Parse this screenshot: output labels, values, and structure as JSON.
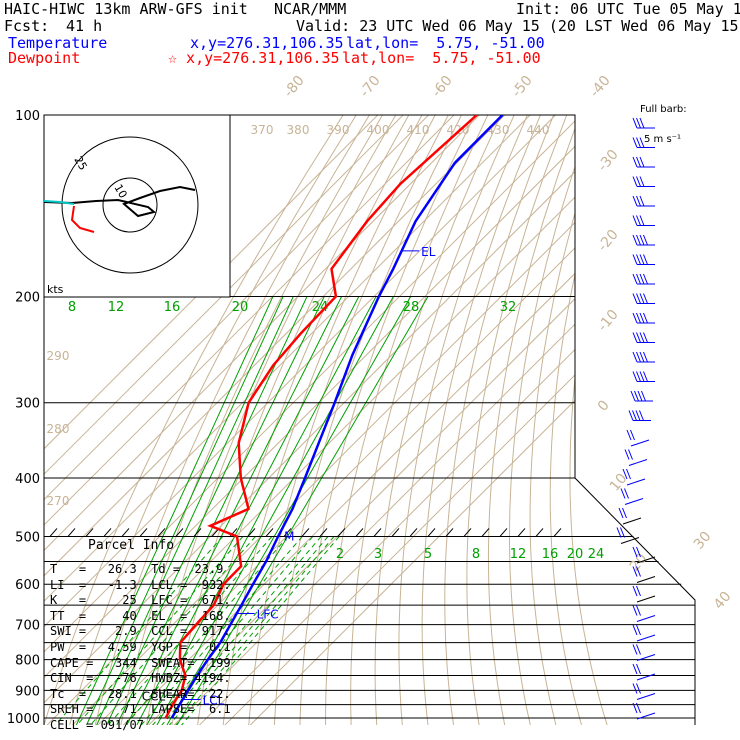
{
  "header": {
    "model": "HAIC-HIWC 13km ARW-GFS init",
    "org": "NCAR/MMM",
    "init": "Init: 06 UTC Tue 05 May 15",
    "fcst_label": "Fcst:",
    "fcst_value": "41 h",
    "valid": "Valid: 23 UTC Wed 06 May 15 (20 LST Wed 06 May 15)",
    "temp_label": "Temperature",
    "temp_xy": "x,y=276.31,106.35",
    "temp_latlon": "lat,lon=  5.75, -51.00",
    "dew_label": "Dewpoint",
    "dew_xy": "☆ x,y=276.31,106.35",
    "dew_latlon": "lat,lon=  5.75, -51.00",
    "full_barb": "Full barb:",
    "full_barb_units": "5 m s⁻¹"
  },
  "colors": {
    "temperature": "#ff0000",
    "dewpoint_note": "blue",
    "dewpoint": "#0000ff",
    "isotherm": "#c8b496",
    "mixing_ratio": "#00a000",
    "isobar": "#000000",
    "hodo_track": "#000000",
    "hodo_low": "#ff0000",
    "hodo_mid": "#00c8c8"
  },
  "chart_data": {
    "type": "skew-t",
    "pressure_levels": [
      100,
      200,
      300,
      400,
      500,
      600,
      700,
      800,
      900,
      1000
    ],
    "pressure_axis": "log",
    "temperature_profile": [
      {
        "p": 100,
        "t": -80.9
      },
      {
        "p": 120,
        "t": -80.8
      },
      {
        "p": 150,
        "t": -73.3
      },
      {
        "p": 180,
        "t": -63.3
      },
      {
        "p": 200,
        "t": -58.1
      },
      {
        "p": 250,
        "t": -45.5
      },
      {
        "p": 300,
        "t": -33.7
      },
      {
        "p": 350,
        "t": -24.1
      },
      {
        "p": 400,
        "t": -15.7
      },
      {
        "p": 450,
        "t": -8.5
      },
      {
        "p": 500,
        "t": -3.3
      },
      {
        "p": 550,
        "t": 1.8
      },
      {
        "p": 600,
        "t": 5.6
      },
      {
        "p": 650,
        "t": 9.3
      },
      {
        "p": 700,
        "t": 12.6
      },
      {
        "p": 750,
        "t": 15.7
      },
      {
        "p": 800,
        "t": 17.5
      },
      {
        "p": 850,
        "t": 19.6
      },
      {
        "p": 900,
        "t": 21.9
      },
      {
        "p": 950,
        "t": 24.1
      },
      {
        "p": 1000,
        "t": 26.3
      }
    ],
    "dewpoint_profile": [
      {
        "p": 100,
        "t": -91.0
      },
      {
        "p": 130,
        "t": -94.0
      },
      {
        "p": 150,
        "t": -92.4
      },
      {
        "p": 180,
        "t": -87.6
      },
      {
        "p": 200,
        "t": -75.0
      },
      {
        "p": 230,
        "t": -74.3
      },
      {
        "p": 260,
        "t": -72.6
      },
      {
        "p": 300,
        "t": -67.6
      },
      {
        "p": 350,
        "t": -55.6
      },
      {
        "p": 400,
        "t": -41.0
      },
      {
        "p": 450,
        "t": -25.8
      },
      {
        "p": 480,
        "t": -34.2
      },
      {
        "p": 500,
        "t": -19.5
      },
      {
        "p": 560,
        "t": -6.2
      },
      {
        "p": 600,
        "t": -6.0
      },
      {
        "p": 650,
        "t": -1.6
      },
      {
        "p": 700,
        "t": -0.9
      },
      {
        "p": 750,
        "t": 0.0
      },
      {
        "p": 800,
        "t": 6.5
      },
      {
        "p": 850,
        "t": 14.9
      },
      {
        "p": 900,
        "t": 19.4
      },
      {
        "p": 950,
        "t": 21.4
      },
      {
        "p": 1000,
        "t": 23.9
      }
    ],
    "isotherm_labels": [
      -80,
      -70,
      -60,
      -50,
      -40,
      -30,
      -20,
      -10,
      0,
      10,
      20,
      30,
      40
    ],
    "theta_labels_top": [
      370,
      380,
      390,
      400,
      410,
      420,
      430,
      440
    ],
    "theta_labels_left": [
      290,
      280,
      270
    ],
    "mixing_ratio_labels_upper": [
      8,
      12,
      16,
      20,
      24,
      28,
      32
    ],
    "mixing_ratio_labels_lower": [
      2,
      3,
      5,
      8,
      12,
      16,
      20,
      24
    ],
    "annotations": [
      {
        "label": "EL",
        "p": 168
      },
      {
        "label": "LFC",
        "p": 671
      },
      {
        "label": "CCL",
        "p": 917
      },
      {
        "label": "LCL",
        "p": 932
      },
      {
        "label": "M",
        "p": 500
      }
    ],
    "hodograph": {
      "units": "kts",
      "rings": [
        10,
        25
      ],
      "ring_labels": [
        "10",
        "25"
      ]
    },
    "wind_barbs_count": 31
  },
  "parcel": {
    "title": "Parcel Info",
    "rows": [
      "T   =   26.3  Td =  23.9",
      "LI  =   -1.3  LCL =  932.",
      "K   =     25  LFC =  671.",
      "TT  =     40  EL  =  168.",
      "SWI =    2.9  CCL =  917.",
      "PW  =   4.59  YGP =   0.1",
      "CAPE =   344  SWEAT=  199",
      "CIN  =   -76  HWBZ= 4194.",
      "Tc  =   28.1  SHEAR=  22.",
      "SREH =    71  LAPSE=  6.1",
      "CELL = 091/07"
    ]
  }
}
